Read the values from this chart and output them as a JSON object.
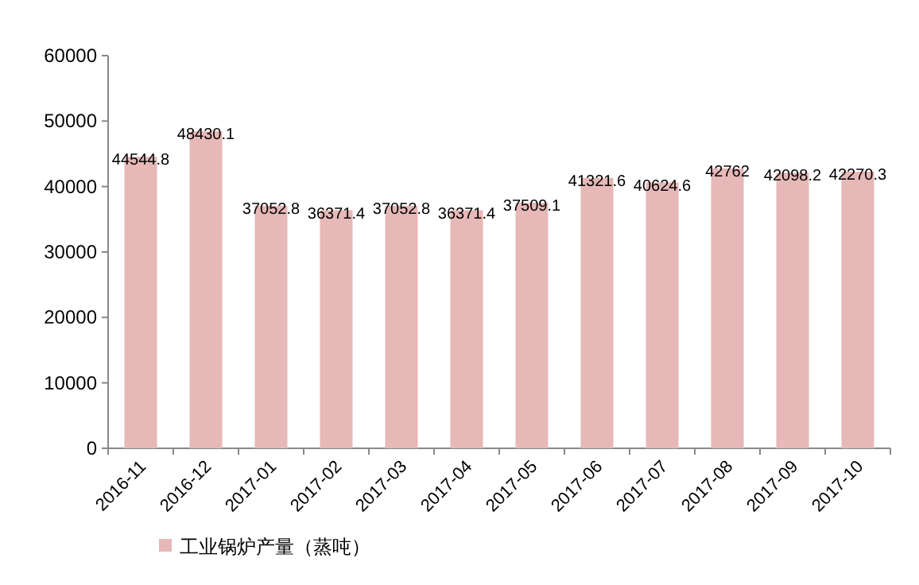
{
  "chart_data": {
    "type": "bar",
    "categories": [
      "2016-11",
      "2016-12",
      "2017-01",
      "2017-02",
      "2017-03",
      "2017-04",
      "2017-05",
      "2017-06",
      "2017-07",
      "2017-08",
      "2017-09",
      "2017-10"
    ],
    "series": [
      {
        "name": "工业锅炉产量（蒸吨）",
        "color": "#e6b8b7",
        "values": [
          44544.8,
          48430.1,
          37052.8,
          36371.4,
          37052.8,
          36371.4,
          37509.1,
          41321.6,
          40624.6,
          42762,
          42098.2,
          42270.3
        ]
      }
    ],
    "ylim": [
      0,
      60000
    ],
    "yticks": [
      0,
      10000,
      20000,
      30000,
      40000,
      50000,
      60000
    ],
    "data_labels": true,
    "legend": "bottom left",
    "grid": false
  }
}
